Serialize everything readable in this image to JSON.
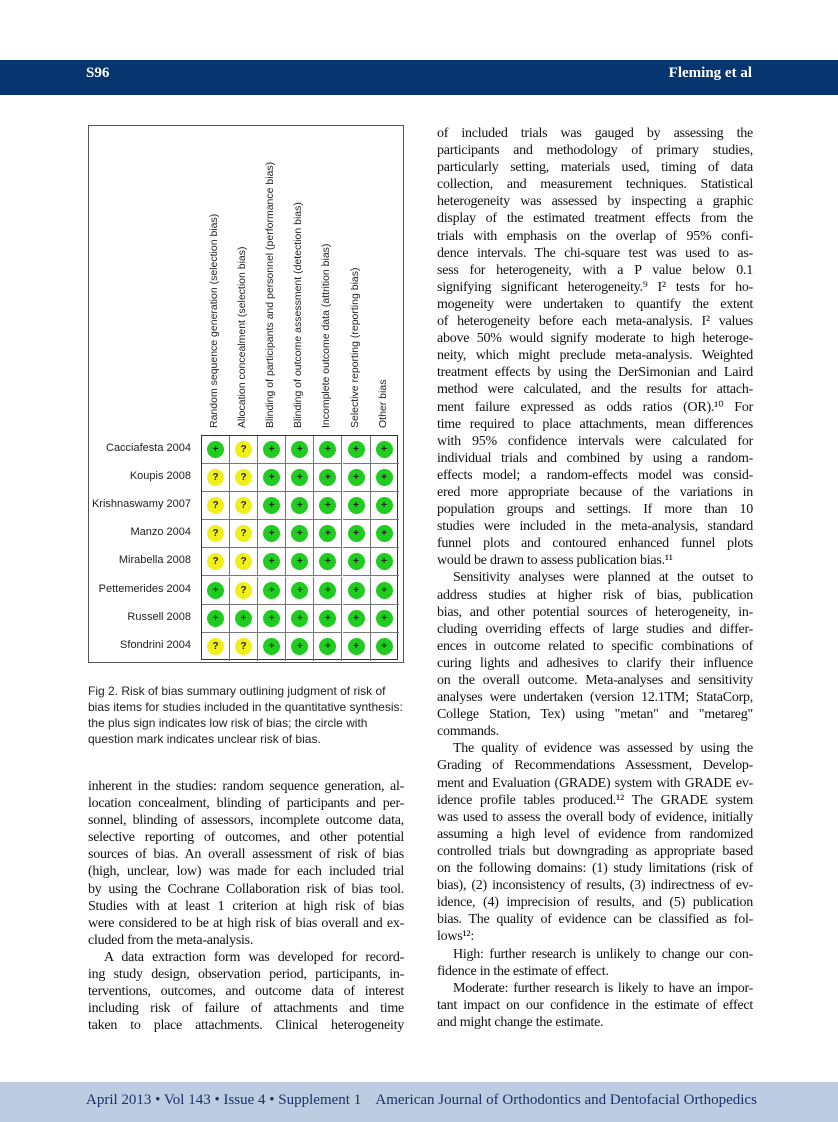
{
  "header": {
    "page": "S96",
    "authors": "Fleming et al",
    "color": "#063570"
  },
  "footer": {
    "text": "April 2013 • Vol 143 • Issue 4 • Supplement 1    American Journal of Orthodontics and Dentofacial Orthopedics",
    "color": "#bccde2"
  },
  "figure": {
    "columns": [
      "Random sequence generation (selection bias)",
      "Allocation concealment (selection bias)",
      "Blinding of participants and personnel (performance bias)",
      "Blinding of outcome assessment (detection bias)",
      "Incomplete outcome data (attrition bias)",
      "Selective reporting (reporting bias)",
      "Other bias"
    ],
    "rows": [
      {
        "study": "Cacciafesta 2004",
        "ratings": [
          "+",
          "?",
          "+",
          "+",
          "+",
          "+",
          "+"
        ]
      },
      {
        "study": "Koupis 2008",
        "ratings": [
          "?",
          "?",
          "+",
          "+",
          "+",
          "+",
          "+"
        ]
      },
      {
        "study": "Krishnaswamy 2007",
        "ratings": [
          "?",
          "?",
          "+",
          "+",
          "+",
          "+",
          "+"
        ]
      },
      {
        "study": "Manzo 2004",
        "ratings": [
          "?",
          "?",
          "+",
          "+",
          "+",
          "+",
          "+"
        ]
      },
      {
        "study": "Mirabella 2008",
        "ratings": [
          "?",
          "?",
          "+",
          "+",
          "+",
          "+",
          "+"
        ]
      },
      {
        "study": "Pettemerides 2004",
        "ratings": [
          "+",
          "?",
          "+",
          "+",
          "+",
          "+",
          "+"
        ]
      },
      {
        "study": "Russell 2008",
        "ratings": [
          "+",
          "+",
          "+",
          "+",
          "+",
          "+",
          "+"
        ]
      },
      {
        "study": "Sfondrini 2004",
        "ratings": [
          "?",
          "?",
          "+",
          "+",
          "+",
          "+",
          "+"
        ]
      }
    ],
    "legend_colors": {
      "low": "#1fcc1f",
      "unclear": "#f0ef1a"
    },
    "caption": "Fig 2. Risk of bias summary outlining judgment of risk of bias items for studies included in the quantitative synthesis: the plus sign indicates low risk of bias; the circle with question mark indicates unclear risk of bias."
  },
  "left_column": [
    {
      "indent": false,
      "lines": [
        "inherent in the studies: random sequence generation, al-",
        "location concealment, blinding of participants and per-",
        "sonnel, blinding of assessors, incomplete outcome data,",
        "selective reporting of outcomes, and other potential",
        "sources of bias. An overall assessment of risk of bias",
        "(high, unclear, low) was made for each included trial",
        "by using the Cochrane Collaboration risk of bias tool.",
        "Studies with at least 1 criterion at high risk of bias",
        "were considered to be at high risk of bias overall and ex-",
        "cluded from the meta-analysis."
      ]
    },
    {
      "indent": true,
      "continues": true,
      "lines": [
        "A data extraction form was developed for record-",
        "ing study design, observation period, participants, in-",
        "terventions, outcomes, and outcome data of interest",
        "including risk of failure of attachments and time",
        "taken to place attachments. Clinical heterogeneity"
      ]
    }
  ],
  "right_column": [
    {
      "indent": false,
      "lines": [
        "of included trials was gauged by assessing the",
        "participants and methodology of primary studies,",
        "particularly setting, materials used, timing of data",
        "collection, and measurement techniques. Statistical",
        "heterogeneity was assessed by inspecting a graphic",
        "display of the estimated treatment effects from the",
        "trials with emphasis on the overlap of 95% confi-",
        "dence intervals. The chi-square test was used to as-",
        "sess for heterogeneity, with a P value below 0.1",
        "signifying significant heterogeneity.⁹ I² tests for ho-",
        "mogeneity were undertaken to quantify the extent",
        "of heterogeneity before each meta-analysis. I² values",
        "above 50% would signify moderate to high heteroge-",
        "neity, which might preclude meta-analysis. Weighted",
        "treatment effects by using the DerSimonian and Laird",
        "method were calculated, and the results for attach-",
        "ment failure expressed as odds ratios (OR).¹⁰ For",
        "time required to place attachments, mean differences",
        "with 95% confidence intervals were calculated for",
        "individual trials and combined by using a random-",
        "effects model; a random-effects model was consid-",
        "ered more appropriate because of the variations in",
        "population groups and settings. If more than 10",
        "studies were included in the meta-analysis, standard",
        "funnel plots and contoured enhanced funnel plots",
        "would be drawn to assess publication bias.¹¹"
      ]
    },
    {
      "indent": true,
      "lines": [
        "Sensitivity analyses were planned at the outset to",
        "address studies at higher risk of bias, publication",
        "bias, and other potential sources of heterogeneity, in-",
        "cluding overriding effects of large studies and differ-",
        "ences in outcome related to specific combinations of",
        "curing lights and adhesives to clarify their influence",
        "on the overall outcome. Meta-analyses and sensitivity",
        "analyses were undertaken (version 12.1TM; StataCorp,",
        "College Station, Tex) using \"metan\" and \"metareg\"",
        "commands."
      ]
    },
    {
      "indent": true,
      "lines": [
        "The quality of evidence was assessed by using the",
        "Grading of Recommendations Assessment, Develop-",
        "ment and Evaluation (GRADE) system with GRADE ev-",
        "idence profile tables produced.¹² The GRADE system",
        "was used to assess the overall body of evidence, initially",
        "assuming a high level of evidence from randomized",
        "controlled trials but downgrading as appropriate based",
        "on the following domains: (1) study limitations (risk of",
        "bias), (2) inconsistency of results, (3) indirectness of ev-",
        "idence, (4) imprecision of results, and (5) publication",
        "bias. The quality of evidence can be classified as fol-",
        "lows¹²:"
      ]
    },
    {
      "indent": true,
      "lines": [
        "High: further research is unlikely to change our con-",
        "fidence in the estimate of effect."
      ]
    },
    {
      "indent": true,
      "lines": [
        "Moderate: further research is likely to have an impor-",
        "tant impact on our confidence in the estimate of effect",
        "and might change the estimate."
      ]
    }
  ]
}
